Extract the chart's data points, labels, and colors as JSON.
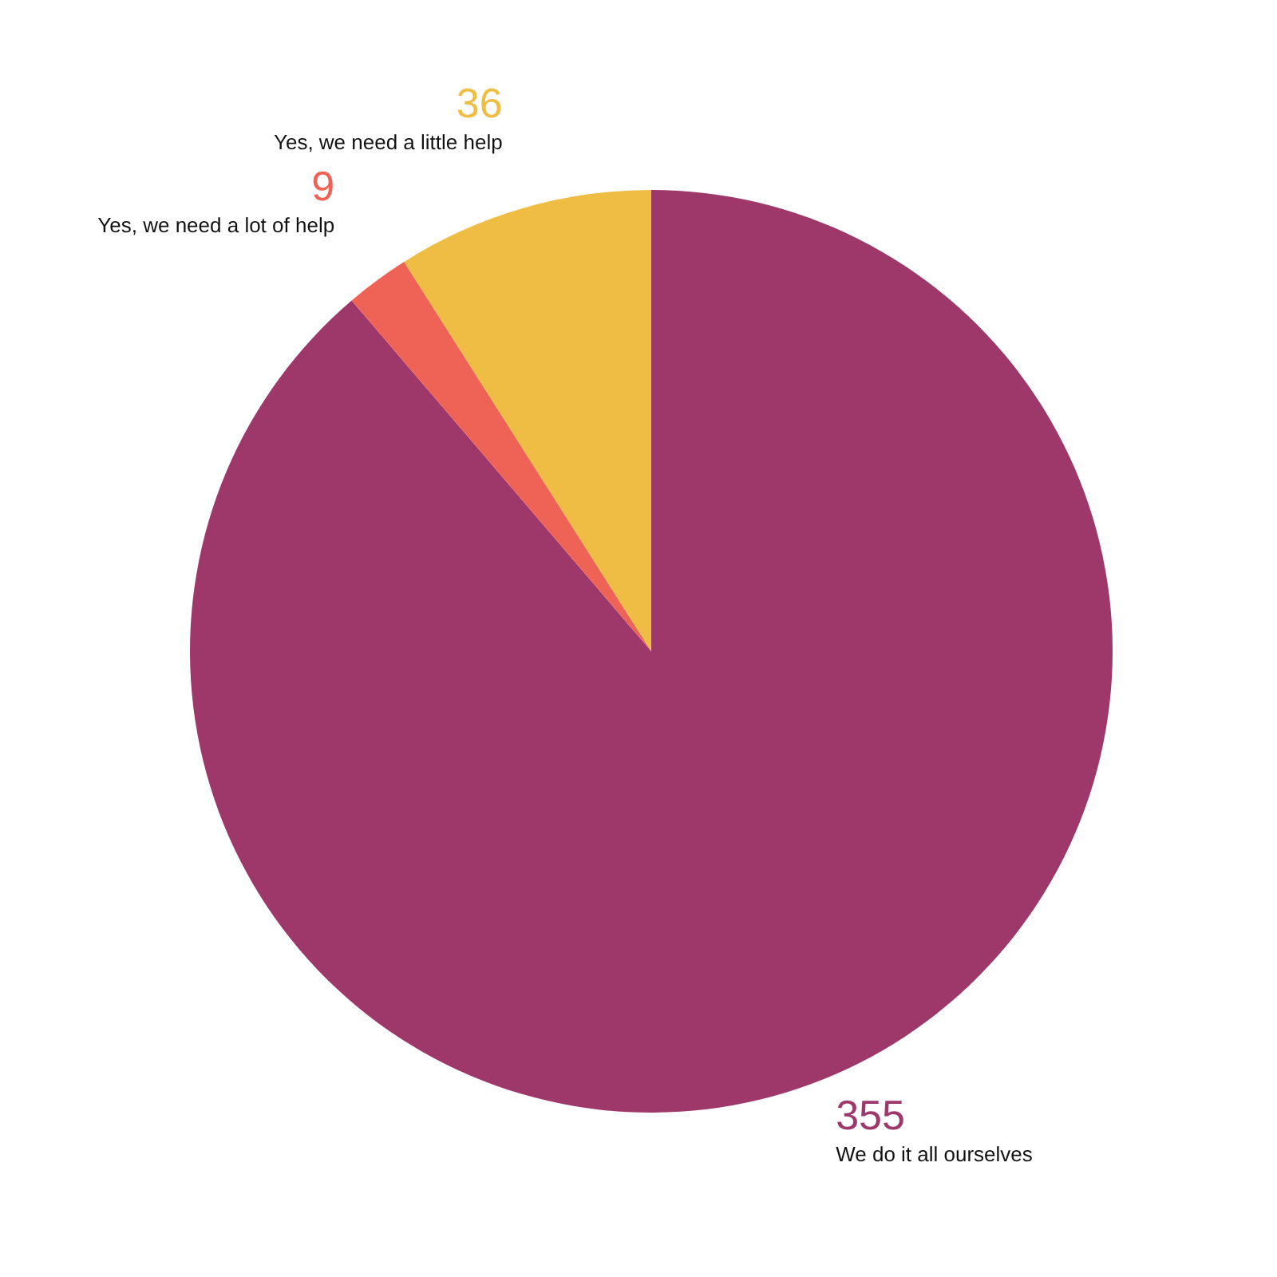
{
  "chart_data": {
    "type": "pie",
    "categories": [
      "We do it all ourselves",
      "Yes, we need a lot of help",
      "Yes, we need a little help"
    ],
    "values": [
      355,
      9,
      36
    ],
    "colors": [
      "#9e386b",
      "#ef6357",
      "#efbc44"
    ],
    "data_labels": true
  }
}
